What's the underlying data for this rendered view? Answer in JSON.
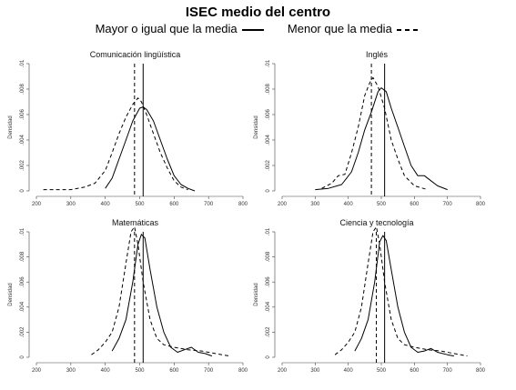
{
  "title": "ISEC medio del centro",
  "legend": [
    {
      "label": "Mayor o igual que la media",
      "style": "solid"
    },
    {
      "label": "Menor que la media",
      "style": "dashed"
    }
  ],
  "chart_data": [
    {
      "type": "line",
      "title": "Comunicación lingüística",
      "ylabel": "Densidad",
      "xlim": [
        200,
        800
      ],
      "ylim": [
        0,
        0.01
      ],
      "xticks": [
        "200",
        "300",
        "400",
        "500",
        "600",
        "700",
        "800"
      ],
      "yticks": [
        "0",
        ".002",
        ".004",
        ".006",
        ".008",
        ".01"
      ],
      "mean_lines": {
        "solid": 510,
        "dashed": 485
      },
      "series": [
        {
          "style": "solid",
          "points": [
            [
              400,
              0.0002
            ],
            [
              420,
              0.001
            ],
            [
              440,
              0.0025
            ],
            [
              460,
              0.004
            ],
            [
              480,
              0.0055
            ],
            [
              500,
              0.0065
            ],
            [
              510,
              0.0066
            ],
            [
              520,
              0.0064
            ],
            [
              540,
              0.0055
            ],
            [
              560,
              0.004
            ],
            [
              580,
              0.0025
            ],
            [
              600,
              0.0012
            ],
            [
              620,
              0.0005
            ],
            [
              640,
              0.0002
            ],
            [
              660,
              0.0
            ]
          ]
        },
        {
          "style": "dashed",
          "points": [
            [
              220,
              0.0001
            ],
            [
              260,
              0.0001
            ],
            [
              300,
              0.0001
            ],
            [
              340,
              0.0003
            ],
            [
              370,
              0.0006
            ],
            [
              400,
              0.0016
            ],
            [
              420,
              0.003
            ],
            [
              440,
              0.0045
            ],
            [
              460,
              0.0058
            ],
            [
              480,
              0.0068
            ],
            [
              495,
              0.0073
            ],
            [
              505,
              0.007
            ],
            [
              520,
              0.006
            ],
            [
              540,
              0.0045
            ],
            [
              560,
              0.003
            ],
            [
              580,
              0.0018
            ],
            [
              600,
              0.0008
            ],
            [
              620,
              0.0003
            ],
            [
              640,
              0.0001
            ]
          ]
        }
      ]
    },
    {
      "type": "line",
      "title": "Inglés",
      "ylabel": "Densidad",
      "xlim": [
        200,
        800
      ],
      "ylim": [
        0,
        0.01
      ],
      "xticks": [
        "200",
        "300",
        "400",
        "500",
        "600",
        "700",
        "800"
      ],
      "yticks": [
        "0",
        ".002",
        ".004",
        ".006",
        ".008",
        ".01"
      ],
      "mean_lines": {
        "solid": 510,
        "dashed": 470
      },
      "series": [
        {
          "style": "solid",
          "points": [
            [
              300,
              0.0001
            ],
            [
              340,
              0.0002
            ],
            [
              380,
              0.0005
            ],
            [
              410,
              0.0015
            ],
            [
              430,
              0.003
            ],
            [
              450,
              0.0048
            ],
            [
              470,
              0.0062
            ],
            [
              490,
              0.0078
            ],
            [
              500,
              0.0081
            ],
            [
              515,
              0.0078
            ],
            [
              530,
              0.0065
            ],
            [
              550,
              0.005
            ],
            [
              570,
              0.0035
            ],
            [
              590,
              0.002
            ],
            [
              610,
              0.0012
            ],
            [
              630,
              0.0012
            ],
            [
              650,
              0.0008
            ],
            [
              670,
              0.0004
            ],
            [
              700,
              0.0001
            ]
          ]
        },
        {
          "style": "dashed",
          "points": [
            [
              320,
              0.0002
            ],
            [
              350,
              0.0006
            ],
            [
              370,
              0.0012
            ],
            [
              390,
              0.0013
            ],
            [
              410,
              0.003
            ],
            [
              430,
              0.005
            ],
            [
              450,
              0.0075
            ],
            [
              465,
              0.0085
            ],
            [
              475,
              0.0089
            ],
            [
              490,
              0.0082
            ],
            [
              510,
              0.0065
            ],
            [
              530,
              0.004
            ],
            [
              550,
              0.0025
            ],
            [
              570,
              0.0012
            ],
            [
              600,
              0.0004
            ],
            [
              640,
              0.0001
            ]
          ]
        }
      ]
    },
    {
      "type": "line",
      "title": "Matemáticas",
      "ylabel": "Densidad",
      "xlim": [
        200,
        800
      ],
      "ylim": [
        0,
        0.01
      ],
      "xticks": [
        "200",
        "300",
        "400",
        "500",
        "600",
        "700",
        "800"
      ],
      "yticks": [
        "0",
        ".002",
        ".004",
        ".006",
        ".008",
        ".01"
      ],
      "mean_lines": {
        "solid": 510,
        "dashed": 485
      },
      "series": [
        {
          "style": "solid",
          "points": [
            [
              420,
              0.0005
            ],
            [
              440,
              0.0015
            ],
            [
              460,
              0.003
            ],
            [
              480,
              0.006
            ],
            [
              495,
              0.009
            ],
            [
              505,
              0.0098
            ],
            [
              515,
              0.0095
            ],
            [
              530,
              0.007
            ],
            [
              550,
              0.004
            ],
            [
              570,
              0.002
            ],
            [
              590,
              0.0008
            ],
            [
              610,
              0.0004
            ],
            [
              630,
              0.0006
            ],
            [
              650,
              0.0008
            ],
            [
              670,
              0.0004
            ],
            [
              690,
              0.0003
            ],
            [
              710,
              0.0001
            ]
          ]
        },
        {
          "style": "dashed",
          "points": [
            [
              360,
              0.0002
            ],
            [
              380,
              0.0006
            ],
            [
              400,
              0.0012
            ],
            [
              420,
              0.002
            ],
            [
              440,
              0.004
            ],
            [
              460,
              0.0075
            ],
            [
              475,
              0.01
            ],
            [
              485,
              0.0104
            ],
            [
              495,
              0.009
            ],
            [
              510,
              0.006
            ],
            [
              530,
              0.003
            ],
            [
              550,
              0.0015
            ],
            [
              570,
              0.001
            ],
            [
              600,
              0.0008
            ],
            [
              640,
              0.0006
            ],
            [
              680,
              0.0005
            ],
            [
              720,
              0.0003
            ],
            [
              760,
              0.0001
            ]
          ]
        }
      ]
    },
    {
      "type": "line",
      "title": "Ciencia y tecnología",
      "ylabel": "Densidad",
      "xlim": [
        200,
        800
      ],
      "ylim": [
        0,
        0.01
      ],
      "xticks": [
        "200",
        "300",
        "400",
        "500",
        "600",
        "700",
        "800"
      ],
      "yticks": [
        "0",
        ".002",
        ".004",
        ".006",
        ".008",
        ".01"
      ],
      "mean_lines": {
        "solid": 510,
        "dashed": 485
      },
      "series": [
        {
          "style": "solid",
          "points": [
            [
              420,
              0.0005
            ],
            [
              440,
              0.0015
            ],
            [
              460,
              0.003
            ],
            [
              480,
              0.006
            ],
            [
              495,
              0.0092
            ],
            [
              505,
              0.0097
            ],
            [
              515,
              0.0093
            ],
            [
              530,
              0.007
            ],
            [
              550,
              0.004
            ],
            [
              570,
              0.002
            ],
            [
              590,
              0.0008
            ],
            [
              610,
              0.0004
            ],
            [
              630,
              0.0005
            ],
            [
              650,
              0.0007
            ],
            [
              670,
              0.0004
            ],
            [
              700,
              0.0002
            ],
            [
              720,
              0.0001
            ]
          ]
        },
        {
          "style": "dashed",
          "points": [
            [
              360,
              0.0002
            ],
            [
              380,
              0.0006
            ],
            [
              400,
              0.0012
            ],
            [
              420,
              0.002
            ],
            [
              440,
              0.004
            ],
            [
              460,
              0.0075
            ],
            [
              475,
              0.01
            ],
            [
              485,
              0.0104
            ],
            [
              495,
              0.009
            ],
            [
              510,
              0.006
            ],
            [
              530,
              0.003
            ],
            [
              550,
              0.0015
            ],
            [
              570,
              0.001
            ],
            [
              600,
              0.0008
            ],
            [
              640,
              0.0006
            ],
            [
              680,
              0.0005
            ],
            [
              720,
              0.0003
            ],
            [
              760,
              0.0001
            ]
          ]
        }
      ]
    }
  ]
}
